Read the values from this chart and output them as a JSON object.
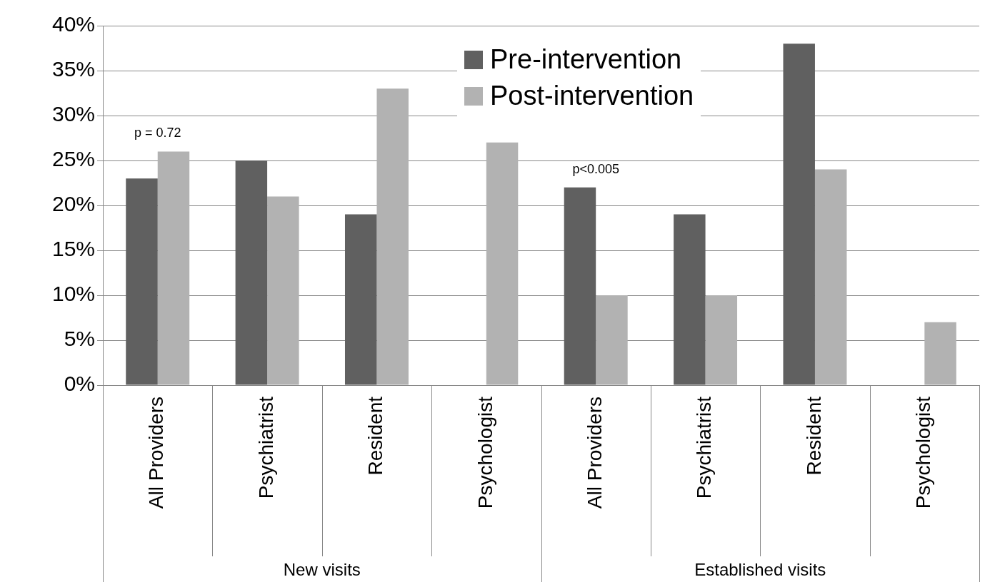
{
  "chart_data": {
    "type": "bar",
    "categories": [
      "All Providers",
      "Psychiatrist",
      "Resident",
      "Psychologist",
      "All Providers",
      "Psychiatrist",
      "Resident",
      "Psychologist"
    ],
    "series": [
      {
        "name": "Pre-intervention",
        "color": "#606060",
        "values": [
          23,
          25,
          19,
          0,
          22,
          19,
          38,
          0
        ]
      },
      {
        "name": "Post-intervention",
        "color": "#b2b2b2",
        "values": [
          26,
          21,
          33,
          27,
          10,
          10,
          24,
          7
        ]
      }
    ],
    "ylim": [
      0,
      40
    ],
    "yticks": [
      {
        "value": 0,
        "label": "0%"
      },
      {
        "value": 5,
        "label": "5%"
      },
      {
        "value": 10,
        "label": "10%"
      },
      {
        "value": 15,
        "label": "15%"
      },
      {
        "value": 20,
        "label": "20%"
      },
      {
        "value": 25,
        "label": "25%"
      },
      {
        "value": 30,
        "label": "30%"
      },
      {
        "value": 35,
        "label": "35%"
      },
      {
        "value": 40,
        "label": "40%"
      }
    ],
    "grid": "y",
    "legend": "top",
    "annotations": [
      "New visits",
      "Established visits",
      "p = 0.72",
      "p<0.005"
    ]
  }
}
